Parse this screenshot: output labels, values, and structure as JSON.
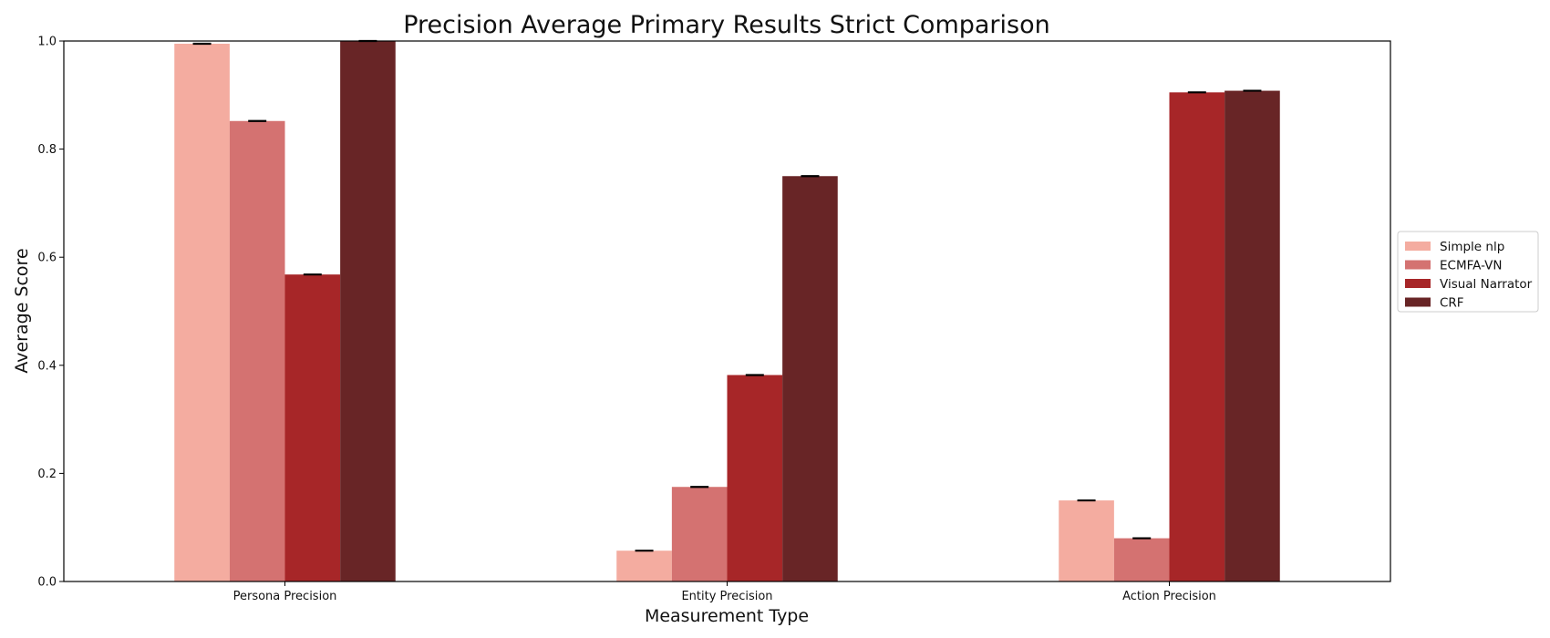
{
  "chart_data": {
    "type": "bar",
    "title": "Precision Average Primary Results Strict Comparison",
    "xlabel": "Measurement Type",
    "ylabel": "Average Score",
    "ylim": [
      0,
      1.0
    ],
    "yticks": [
      "0.0",
      "0.2",
      "0.4",
      "0.6",
      "0.8",
      "1.0"
    ],
    "categories": [
      "Persona Precision",
      "Entity Precision",
      "Action Precision"
    ],
    "series": [
      {
        "name": "Simple nlp",
        "color": "#f4aca0",
        "values": [
          0.995,
          0.057,
          0.15
        ]
      },
      {
        "name": "ECMFA-VN",
        "color": "#d47271",
        "values": [
          0.852,
          0.175,
          0.08
        ]
      },
      {
        "name": "Visual Narrator",
        "color": "#a72628",
        "values": [
          0.568,
          0.382,
          0.905
        ]
      },
      {
        "name": "CRF",
        "color": "#682526",
        "values": [
          1.0,
          0.75,
          0.908
        ]
      }
    ],
    "error_bars": true,
    "grid": false,
    "legend_position": "center-right"
  }
}
